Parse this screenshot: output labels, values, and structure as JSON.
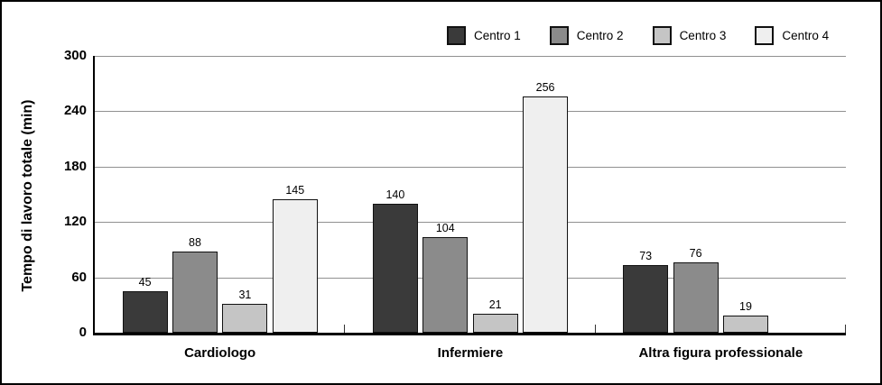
{
  "chart_data": {
    "type": "bar",
    "title": "",
    "xlabel": "",
    "ylabel": "Tempo di lavoro totale (min)",
    "categories": [
      "Cardiologo",
      "Infermiere",
      "Altra figura professionale"
    ],
    "series": [
      {
        "name": "Centro 1",
        "color": "#3a3a3a",
        "values": [
          45,
          140,
          73
        ]
      },
      {
        "name": "Centro 2",
        "color": "#8b8b8b",
        "values": [
          88,
          104,
          76
        ]
      },
      {
        "name": "Centro 3",
        "color": "#c5c5c5",
        "values": [
          31,
          21,
          19
        ]
      },
      {
        "name": "Centro 4",
        "color": "#efefef",
        "values": [
          145,
          256,
          null
        ]
      }
    ],
    "ylim": [
      0,
      300
    ],
    "yticks": [
      0,
      60,
      120,
      180,
      240,
      300
    ],
    "grid": "horizontal",
    "legend_position": "top-right",
    "value_labels": true
  },
  "colors": {
    "grid": "#909090",
    "axis": "#000000",
    "bar_border": "#111111",
    "frame": "#000000",
    "background": "#ffffff"
  }
}
